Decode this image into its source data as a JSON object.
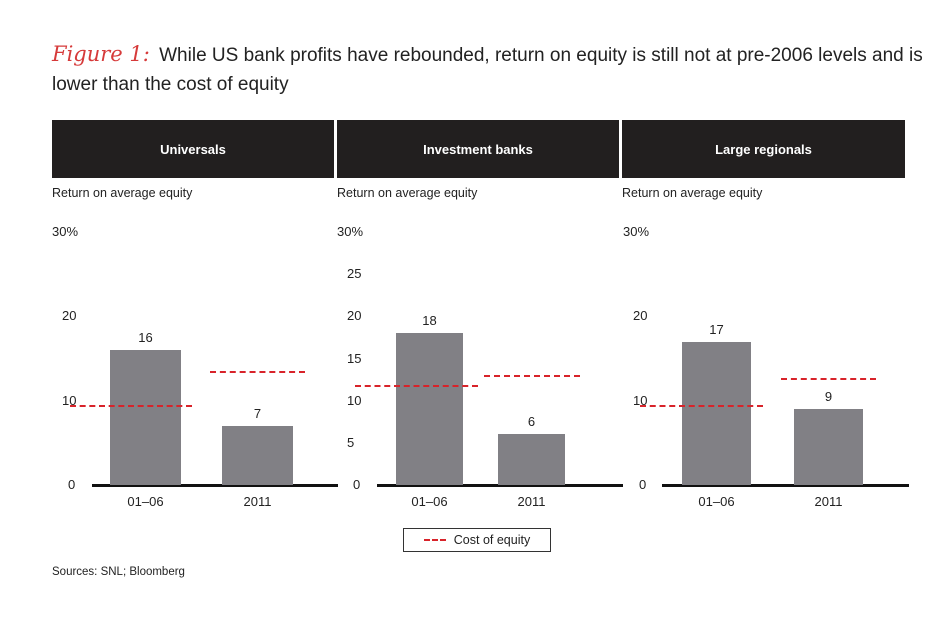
{
  "title": {
    "figure_label": "Figure 1:",
    "text": "While US bank profits have rebounded, return on equity is still not at pre-2006 levels and is lower than the cost of equity"
  },
  "legend": {
    "label": "Cost of equity"
  },
  "source": "Sources: SNL; Bloomberg",
  "colors": {
    "bar": "#818085",
    "cost_of_equity": "#d8232a",
    "header": "#221f1f"
  },
  "chart_data": [
    {
      "type": "bar",
      "title": "Universals",
      "ylabel": "Return on average equity",
      "ylim": [
        0,
        30
      ],
      "yticks": [
        "0",
        "10",
        "20",
        "30%"
      ],
      "categories": [
        "01–06",
        "2011"
      ],
      "values": [
        16,
        7
      ],
      "value_labels": [
        "16",
        "7"
      ],
      "cost_of_equity": [
        9.5,
        13.5
      ]
    },
    {
      "type": "bar",
      "title": "Investment banks",
      "ylabel": "Return on average equity",
      "ylim": [
        0,
        30
      ],
      "yticks": [
        "0",
        "5",
        "10",
        "15",
        "20",
        "25",
        "30%"
      ],
      "categories": [
        "01–06",
        "2011"
      ],
      "values": [
        18,
        6
      ],
      "value_labels": [
        "18",
        "6"
      ],
      "cost_of_equity": [
        11.8,
        13
      ]
    },
    {
      "type": "bar",
      "title": "Large regionals",
      "ylabel": "Return on average equity",
      "ylim": [
        0,
        30
      ],
      "yticks": [
        "0",
        "10",
        "20",
        "30%"
      ],
      "categories": [
        "01–06",
        "2011"
      ],
      "values": [
        17,
        9
      ],
      "value_labels": [
        "17",
        "9"
      ],
      "cost_of_equity": [
        9.5,
        12.7
      ]
    }
  ]
}
